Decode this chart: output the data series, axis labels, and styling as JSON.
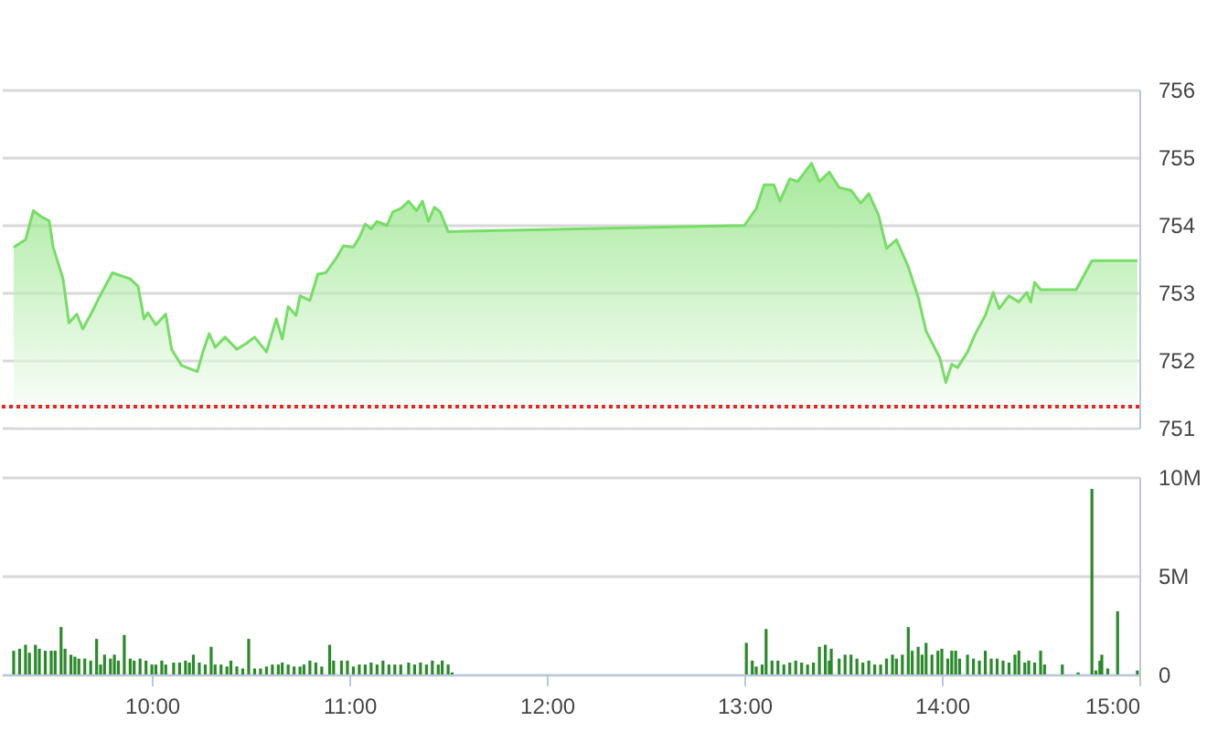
{
  "chart_data": [
    {
      "type": "area",
      "xlim": [
        9.24,
        15
      ],
      "ylim": [
        751,
        756
      ],
      "yticks": [
        751,
        752,
        753,
        754,
        755,
        756
      ],
      "grid": "y",
      "tick_labels": "y",
      "x": [
        9.3,
        9.36,
        9.4,
        9.44,
        9.48,
        9.5,
        9.55,
        9.58,
        9.62,
        9.65,
        9.7,
        9.73,
        9.8,
        9.89,
        9.93,
        9.96,
        9.98,
        10.02,
        10.07,
        10.1,
        10.15,
        10.23,
        10.26,
        10.29,
        10.32,
        10.37,
        10.43,
        10.48,
        10.52,
        10.58,
        10.63,
        10.66,
        10.69,
        10.73,
        10.75,
        10.8,
        10.84,
        10.88,
        10.93,
        10.97,
        11.02,
        11.05,
        11.08,
        11.11,
        11.14,
        11.19,
        11.22,
        11.26,
        11.3,
        11.34,
        11.37,
        11.4,
        11.43,
        11.46,
        11.5,
        13.0,
        13.06,
        13.1,
        13.15,
        13.18,
        13.23,
        13.27,
        13.34,
        13.38,
        13.43,
        13.48,
        13.54,
        13.59,
        13.63,
        13.68,
        13.72,
        13.77,
        13.83,
        13.88,
        13.92,
        13.99,
        14.02,
        14.05,
        14.08,
        14.13,
        14.17,
        14.22,
        14.26,
        14.29,
        14.34,
        14.39,
        14.43,
        14.45,
        14.47,
        14.5,
        14.68,
        14.76,
        14.99
      ],
      "series": [
        {
          "color": "#77dd66",
          "values": [
            753.67,
            753.78,
            754.21,
            754.12,
            754.06,
            753.67,
            753.2,
            752.55,
            752.68,
            752.46,
            752.73,
            752.91,
            753.29,
            753.2,
            753.09,
            752.61,
            752.7,
            752.52,
            752.68,
            752.16,
            751.92,
            751.83,
            752.14,
            752.39,
            752.19,
            752.34,
            752.16,
            752.25,
            752.34,
            752.12,
            752.61,
            752.31,
            752.79,
            752.66,
            752.95,
            752.88,
            753.27,
            753.29,
            753.49,
            753.69,
            753.67,
            753.81,
            754.01,
            753.94,
            754.05,
            753.99,
            754.19,
            754.24,
            754.35,
            754.21,
            754.35,
            754.05,
            754.26,
            754.19,
            753.9,
            753.99,
            754.24,
            754.59,
            754.59,
            754.35,
            754.68,
            754.64,
            754.91,
            754.64,
            754.78,
            754.55,
            754.51,
            754.32,
            754.46,
            754.14,
            753.65,
            753.78,
            753.38,
            752.93,
            752.43,
            752.03,
            751.67,
            751.94,
            751.89,
            752.12,
            752.39,
            752.66,
            753.0,
            752.76,
            752.95,
            752.86,
            753.0,
            752.86,
            753.15,
            753.04,
            753.04,
            753.47,
            753.47
          ]
        }
      ],
      "ref_lines": [
        {
          "axis": "y",
          "value": 751.31,
          "color": "#ee2222",
          "line_style": "dotted"
        }
      ]
    },
    {
      "type": "bar",
      "xlim": [
        9.24,
        15
      ],
      "xticks": [
        {
          "value": 10,
          "label": "10:00"
        },
        {
          "value": 11,
          "label": "11:00"
        },
        {
          "value": 12,
          "label": "12:00"
        },
        {
          "value": 13,
          "label": "13:00"
        },
        {
          "value": 14,
          "label": "14:00"
        },
        {
          "value": 15,
          "label": "15:00"
        }
      ],
      "ylim": [
        0,
        10
      ],
      "yticks": [
        0,
        {
          "value": 5,
          "label": "5M"
        },
        {
          "value": 10,
          "label": "10M"
        }
      ],
      "grid": "y",
      "x": [
        9.3,
        9.33,
        9.36,
        9.38,
        9.41,
        9.43,
        9.46,
        9.49,
        9.51,
        9.54,
        9.56,
        9.59,
        9.61,
        9.63,
        9.66,
        9.69,
        9.72,
        9.74,
        9.76,
        9.79,
        9.81,
        9.83,
        9.86,
        9.89,
        9.91,
        9.94,
        9.97,
        10.0,
        10.02,
        10.05,
        10.07,
        10.11,
        10.14,
        10.17,
        10.19,
        10.21,
        10.24,
        10.27,
        10.3,
        10.32,
        10.35,
        10.38,
        10.4,
        10.43,
        10.46,
        10.49,
        10.52,
        10.55,
        10.58,
        10.61,
        10.64,
        10.66,
        10.69,
        10.72,
        10.75,
        10.77,
        10.8,
        10.83,
        10.86,
        10.9,
        10.92,
        10.96,
        10.99,
        11.02,
        11.05,
        11.08,
        11.11,
        11.14,
        11.17,
        11.2,
        11.23,
        11.26,
        11.3,
        11.33,
        11.36,
        11.39,
        11.42,
        11.45,
        11.47,
        11.5,
        11.52,
        13.01,
        13.04,
        13.06,
        13.09,
        13.11,
        13.14,
        13.17,
        13.2,
        13.23,
        13.26,
        13.29,
        13.32,
        13.35,
        13.38,
        13.41,
        13.43,
        13.44,
        13.48,
        13.51,
        13.54,
        13.57,
        13.6,
        13.63,
        13.66,
        13.69,
        13.72,
        13.75,
        13.77,
        13.8,
        13.83,
        13.85,
        13.88,
        13.9,
        13.92,
        13.95,
        13.98,
        14.0,
        14.03,
        14.05,
        14.07,
        14.09,
        14.13,
        14.16,
        14.19,
        14.22,
        14.25,
        14.28,
        14.31,
        14.34,
        14.37,
        14.39,
        14.42,
        14.44,
        14.47,
        14.5,
        14.52,
        14.61,
        14.69,
        14.76,
        14.78,
        14.8,
        14.81,
        14.84,
        14.89,
        14.99
      ],
      "series": [
        {
          "color": "#2a8a2a",
          "values": [
            1.2,
            1.3,
            1.5,
            1.1,
            1.5,
            1.3,
            1.2,
            1.2,
            1.2,
            2.4,
            1.3,
            1.0,
            0.9,
            0.8,
            0.8,
            0.7,
            1.8,
            0.5,
            1.0,
            0.8,
            1.0,
            0.7,
            2.0,
            0.8,
            0.7,
            0.8,
            0.7,
            0.5,
            0.5,
            0.7,
            0.5,
            0.6,
            0.6,
            0.7,
            0.6,
            1.0,
            0.6,
            0.5,
            1.4,
            0.5,
            0.5,
            0.4,
            0.7,
            0.4,
            0.3,
            1.8,
            0.3,
            0.3,
            0.4,
            0.5,
            0.5,
            0.6,
            0.5,
            0.4,
            0.4,
            0.5,
            0.7,
            0.6,
            0.4,
            1.5,
            0.7,
            0.7,
            0.7,
            0.4,
            0.5,
            0.5,
            0.6,
            0.5,
            0.7,
            0.5,
            0.5,
            0.5,
            0.6,
            0.5,
            0.6,
            0.5,
            0.7,
            0.5,
            0.7,
            0.5,
            0.1,
            1.6,
            0.7,
            0.4,
            0.5,
            2.3,
            0.7,
            0.7,
            0.5,
            0.6,
            0.7,
            0.6,
            0.5,
            0.6,
            1.4,
            1.5,
            0.7,
            1.3,
            0.8,
            1.0,
            1.0,
            0.8,
            0.6,
            0.7,
            0.5,
            0.5,
            0.8,
            1.0,
            0.8,
            1.0,
            2.4,
            1.2,
            1.4,
            1.0,
            1.6,
            1.0,
            1.2,
            1.3,
            0.8,
            1.2,
            1.2,
            0.8,
            1.0,
            0.8,
            0.7,
            1.2,
            0.8,
            0.8,
            0.7,
            0.6,
            1.0,
            1.2,
            0.6,
            0.7,
            0.6,
            1.2,
            0.5,
            0.5,
            0.1,
            9.4,
            0.2,
            0.7,
            1.0,
            0.3,
            3.2,
            0.2
          ]
        }
      ]
    }
  ]
}
